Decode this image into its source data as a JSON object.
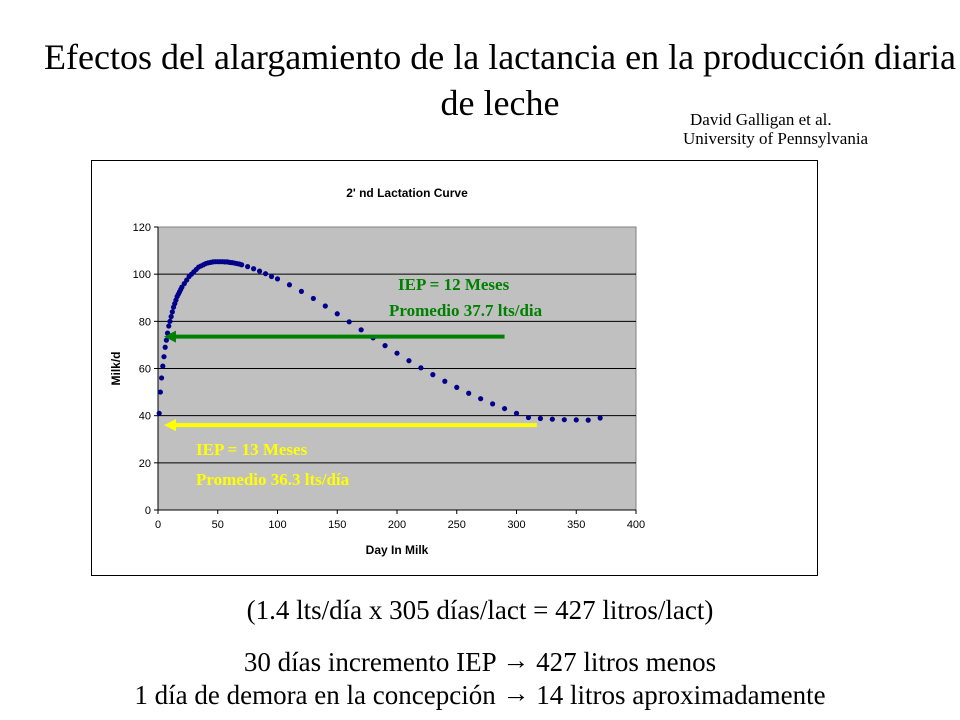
{
  "slide": {
    "title": "Efectos del alargamiento de la lactancia en la producción diaria de leche",
    "credit_line1": "David Galligan et al.",
    "credit_line2": "University of Pennsylvania",
    "formula": "(1.4 lts/día x 305 días/lact = 427 litros/lact)",
    "line2_left": "30 días incremento IEP",
    "line2_right": "427 litros menos",
    "line3_left": "1 día de demora en la concepción",
    "line3_right": "14 litros aproximadamente",
    "arrow_symbol": "→"
  },
  "chart_data": {
    "type": "scatter",
    "title": "2' nd Lactation Curve",
    "xlabel": "Day In Milk",
    "ylabel": "Milk/d",
    "xlim": [
      0,
      400
    ],
    "ylim": [
      0,
      120
    ],
    "xticks": [
      0,
      50,
      100,
      150,
      200,
      250,
      300,
      350,
      400
    ],
    "yticks": [
      0,
      20,
      40,
      60,
      80,
      100,
      120
    ],
    "grid": "horizontal",
    "plot_background": "#c0c0c0",
    "series": [
      {
        "color": "#00008b",
        "x": [
          1,
          2,
          3,
          4,
          5,
          6,
          7,
          8,
          9,
          10,
          11,
          12,
          13,
          14,
          15,
          16,
          17,
          18,
          19,
          20,
          22,
          24,
          26,
          28,
          30,
          32,
          34,
          36,
          38,
          40,
          42,
          44,
          46,
          48,
          50,
          52,
          54,
          56,
          58,
          60,
          62,
          64,
          66,
          68,
          70,
          75,
          80,
          85,
          90,
          95,
          100,
          110,
          120,
          130,
          140,
          150,
          160,
          170,
          180,
          190,
          200,
          210,
          220,
          230,
          240,
          250,
          260,
          270,
          280,
          290,
          300,
          310,
          320,
          330,
          340,
          350,
          360,
          370
        ],
        "y": [
          41,
          50,
          56,
          61,
          65,
          69,
          72,
          75,
          78,
          80,
          82,
          84,
          86,
          87.5,
          89,
          90.5,
          91.5,
          92.5,
          93.5,
          94.5,
          96,
          97.5,
          99,
          100,
          101,
          102,
          103,
          103.5,
          104,
          104.5,
          104.8,
          105,
          105.2,
          105.3,
          105.3,
          105.3,
          105.3,
          105.2,
          105.2,
          105,
          104.9,
          104.7,
          104.5,
          104.3,
          104,
          103.2,
          102.3,
          101.3,
          100.2,
          99,
          98,
          95.5,
          92.7,
          89.7,
          86.5,
          83.2,
          79.8,
          76.4,
          73,
          69.7,
          66.5,
          63.3,
          60.3,
          57.4,
          54.6,
          52,
          49.5,
          47.2,
          45,
          43,
          41,
          39.2,
          38.8,
          38.5,
          38.3,
          38.2,
          38.1,
          39
        ]
      }
    ],
    "annotations": [
      {
        "color": "#008000",
        "text_line1": "IEP = 12 Meses",
        "text_line2": "Promedio 37.7 lts/dia",
        "value": 73.5,
        "arrow_from_day": 290,
        "arrow_to_day": 5
      },
      {
        "color": "#ffff00",
        "text_line1": "IEP = 13 Meses",
        "text_line2": "Promedio 36.3 lts/día",
        "value": 36,
        "arrow_from_day": 317,
        "arrow_to_day": 5
      }
    ]
  }
}
